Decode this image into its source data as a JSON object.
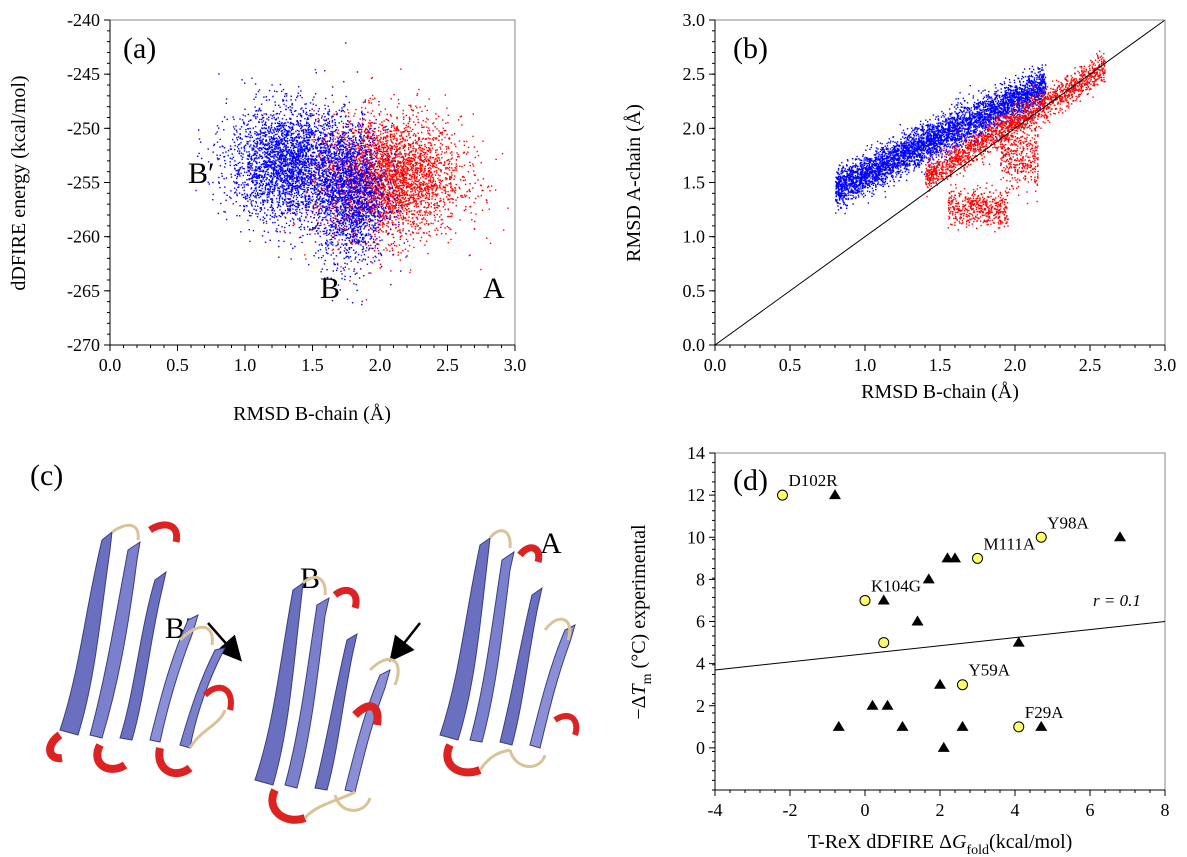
{
  "chart_data": [
    {
      "panel_label": "(a)",
      "type": "scatter",
      "xlabel": "RMSD B-chain (Å)",
      "ylabel": "dDFIRE energy (kcal/mol)",
      "xlim": [
        0.0,
        3.0
      ],
      "ylim": [
        -270,
        -240
      ],
      "xticks": [
        "0.0",
        "0.5",
        "1.0",
        "1.5",
        "2.0",
        "2.5",
        "3.0"
      ],
      "yticks": [
        "-240",
        "-245",
        "-250",
        "-255",
        "-260",
        "-265",
        "-270"
      ],
      "annotations": [
        "B′",
        "B",
        "A"
      ],
      "colors": {
        "cluster_B": "#0000ff",
        "cluster_A": "#ff0000"
      },
      "series": [
        {
          "color": "#ff0000",
          "clusters": [
            {
              "center": [
                2.05,
                -254.5
              ],
              "sd": [
                0.27,
                2.8
              ],
              "count": 3600
            }
          ]
        },
        {
          "color": "#0000ff",
          "clusters": [
            {
              "center": [
                1.32,
                -253.2
              ],
              "sd": [
                0.22,
                2.6
              ],
              "count": 3000
            },
            {
              "center": [
                1.78,
                -256.2
              ],
              "sd": [
                0.13,
                3.2
              ],
              "count": 1800
            }
          ]
        }
      ]
    },
    {
      "panel_label": "(b)",
      "type": "scatter",
      "xlabel": "RMSD B-chain (Å)",
      "ylabel": "RMSD A-chain (Å)",
      "xlim": [
        0.0,
        3.0
      ],
      "ylim": [
        0.0,
        3.0
      ],
      "xticks": [
        "0.0",
        "0.5",
        "1.0",
        "1.5",
        "2.0",
        "2.5",
        "3.0"
      ],
      "yticks": [
        "0.0",
        "0.5",
        "1.0",
        "1.5",
        "2.0",
        "2.5",
        "3.0"
      ],
      "reference_line": {
        "from": [
          0.0,
          0.0
        ],
        "to": [
          3.0,
          3.0
        ]
      },
      "series": [
        {
          "color": "#0000ff",
          "bands": [
            {
              "x_range": [
                0.8,
                2.2
              ],
              "y_at_start": 1.45,
              "slope": 0.68,
              "spread": 0.09,
              "count": 4500
            }
          ]
        },
        {
          "color": "#ff0000",
          "bands": [
            {
              "x_range": [
                1.4,
                2.6
              ],
              "y_at_start": 1.55,
              "slope": 0.85,
              "spread": 0.07,
              "count": 1800
            },
            {
              "x_range": [
                1.55,
                1.95
              ],
              "y_at_start": 1.27,
              "slope": 0.0,
              "spread": 0.08,
              "count": 500
            },
            {
              "x_range": [
                1.9,
                2.15
              ],
              "y_at_start": 1.75,
              "slope": 0.0,
              "spread": 0.15,
              "count": 400
            }
          ]
        }
      ]
    },
    {
      "panel_label": "(d)",
      "type": "scatter",
      "xlabel": "T-ReX dDFIRE ΔGfold(kcal/mol)",
      "ylabel": "−ΔTm (°C) experimental",
      "xlim": [
        -4,
        8
      ],
      "ylim": [
        -2,
        14
      ],
      "xticks": [
        "-4",
        "-2",
        "0",
        "2",
        "4",
        "6",
        "8"
      ],
      "yticks": [
        "0",
        "2",
        "4",
        "6",
        "8",
        "10",
        "12",
        "14"
      ],
      "regression": {
        "label": "r = 0.1",
        "from": [
          -4,
          3.7
        ],
        "to": [
          8,
          6.0
        ]
      },
      "colors": {
        "circles": "#ffff66",
        "triangles": "#000000"
      },
      "series": [
        {
          "marker": "circle",
          "points": [
            {
              "x": -2.2,
              "y": 12,
              "label": "D102R"
            },
            {
              "x": 4.7,
              "y": 10,
              "label": "Y98A"
            },
            {
              "x": 3.0,
              "y": 9,
              "label": "M111A"
            },
            {
              "x": 0.0,
              "y": 7,
              "label": "K104G"
            },
            {
              "x": 0.5,
              "y": 5
            },
            {
              "x": 2.6,
              "y": 3,
              "label": "Y59A"
            },
            {
              "x": 4.1,
              "y": 1,
              "label": "F29A"
            }
          ]
        },
        {
          "marker": "triangle",
          "points": [
            {
              "x": -0.8,
              "y": 12
            },
            {
              "x": 6.8,
              "y": 10
            },
            {
              "x": 2.2,
              "y": 9
            },
            {
              "x": 2.4,
              "y": 9
            },
            {
              "x": 1.7,
              "y": 8
            },
            {
              "x": 0.5,
              "y": 7
            },
            {
              "x": 1.4,
              "y": 6
            },
            {
              "x": 4.1,
              "y": 5
            },
            {
              "x": 2.0,
              "y": 3
            },
            {
              "x": 0.2,
              "y": 2
            },
            {
              "x": 0.6,
              "y": 2
            },
            {
              "x": -0.7,
              "y": 1
            },
            {
              "x": 1.0,
              "y": 1
            },
            {
              "x": 2.6,
              "y": 1
            },
            {
              "x": 4.7,
              "y": 1
            },
            {
              "x": 2.1,
              "y": 0
            }
          ]
        }
      ]
    }
  ],
  "panel_c": {
    "panel_label": "(c)",
    "structure_labels": [
      "B′",
      "B",
      "A"
    ],
    "colors": {
      "strand": "#6a6fc0",
      "loop": "#d8c39a",
      "helix": "#dd2222"
    }
  }
}
